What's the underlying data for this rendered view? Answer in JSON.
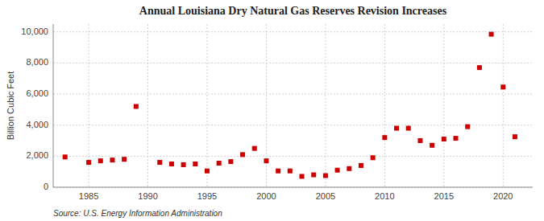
{
  "chart_data": {
    "type": "scatter",
    "title": "Annual Louisiana Dry Natural Gas Reserves Revision Increases",
    "ylabel": "Billion Cubic Feet",
    "source": "Source: U.S. Energy Information Administration",
    "color": "#cc0000",
    "marker": "square",
    "x": [
      1983,
      1985,
      1986,
      1987,
      1988,
      1989,
      1991,
      1992,
      1993,
      1994,
      1995,
      1996,
      1997,
      1998,
      1999,
      2000,
      2001,
      2002,
      2003,
      2004,
      2005,
      2006,
      2007,
      2008,
      2009,
      2010,
      2011,
      2012,
      2013,
      2014,
      2015,
      2016,
      2017,
      2018,
      2019,
      2020,
      2021
    ],
    "values": [
      1950,
      1600,
      1700,
      1750,
      1800,
      5200,
      1600,
      1500,
      1450,
      1500,
      1050,
      1550,
      1650,
      2100,
      2500,
      1700,
      1050,
      1050,
      700,
      800,
      750,
      1100,
      1200,
      1400,
      1900,
      3200,
      3800,
      3800,
      3000,
      2700,
      3100,
      3150,
      3900,
      7700,
      9850,
      6450,
      3250
    ],
    "xlim": [
      1982,
      2022.5
    ],
    "ylim": [
      0,
      10500
    ],
    "xticks": [
      1985,
      1990,
      1995,
      2000,
      2005,
      2010,
      2015,
      2020
    ],
    "yticks": [
      0,
      {
        "value": 2000,
        "label": "2,000"
      },
      {
        "value": 4000,
        "label": "4,000"
      },
      {
        "value": 6000,
        "label": "6,000"
      },
      {
        "value": 8000,
        "label": "8,000"
      },
      {
        "value": 10000,
        "label": "10,000"
      }
    ],
    "grid": true
  }
}
